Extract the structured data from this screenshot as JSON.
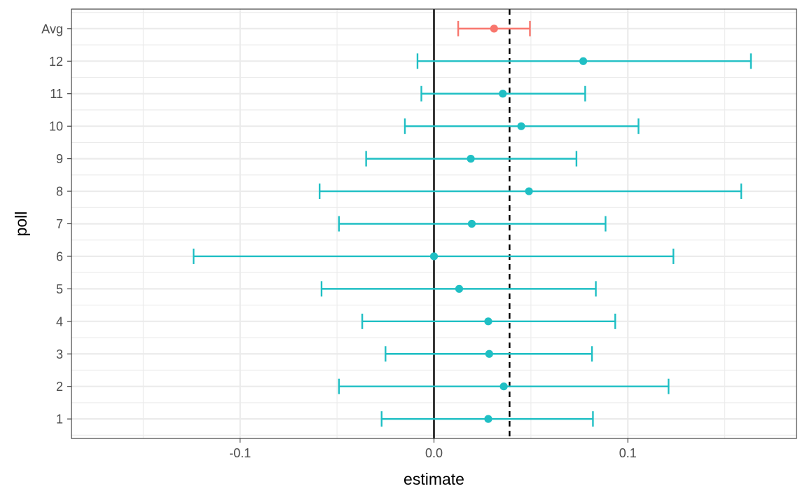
{
  "chart_data": {
    "type": "errorbar",
    "xlabel": "estimate",
    "ylabel": "poll",
    "xlim": [
      -0.187,
      0.187
    ],
    "x_ticks": [
      -0.1,
      0.0,
      0.1
    ],
    "x_tick_labels": [
      "-0.1",
      "0.0",
      "0.1"
    ],
    "x_minor_ticks": [
      -0.15,
      -0.05,
      0.05,
      0.15
    ],
    "categories": [
      "1",
      "2",
      "3",
      "4",
      "5",
      "6",
      "7",
      "8",
      "9",
      "10",
      "11",
      "12",
      "Avg"
    ],
    "points": [
      {
        "poll": "1",
        "estimate": 0.028,
        "low": -0.027,
        "high": 0.082,
        "group": "poll"
      },
      {
        "poll": "2",
        "estimate": 0.036,
        "low": -0.049,
        "high": 0.121,
        "group": "poll"
      },
      {
        "poll": "3",
        "estimate": 0.0285,
        "low": -0.025,
        "high": 0.0815,
        "group": "poll"
      },
      {
        "poll": "4",
        "estimate": 0.028,
        "low": -0.037,
        "high": 0.0935,
        "group": "poll"
      },
      {
        "poll": "5",
        "estimate": 0.013,
        "low": -0.058,
        "high": 0.0835,
        "group": "poll"
      },
      {
        "poll": "6",
        "estimate": 0.0,
        "low": -0.124,
        "high": 0.1235,
        "group": "poll"
      },
      {
        "poll": "7",
        "estimate": 0.0195,
        "low": -0.049,
        "high": 0.0885,
        "group": "poll"
      },
      {
        "poll": "8",
        "estimate": 0.049,
        "low": -0.059,
        "high": 0.1585,
        "group": "poll"
      },
      {
        "poll": "9",
        "estimate": 0.019,
        "low": -0.035,
        "high": 0.0735,
        "group": "poll"
      },
      {
        "poll": "10",
        "estimate": 0.045,
        "low": -0.015,
        "high": 0.1055,
        "group": "poll"
      },
      {
        "poll": "11",
        "estimate": 0.0355,
        "low": -0.0065,
        "high": 0.078,
        "group": "poll"
      },
      {
        "poll": "12",
        "estimate": 0.077,
        "low": -0.0085,
        "high": 0.1635,
        "group": "poll"
      },
      {
        "poll": "Avg",
        "estimate": 0.031,
        "low": 0.0125,
        "high": 0.0495,
        "group": "avg"
      }
    ],
    "reference_lines": [
      {
        "x": 0.0,
        "style": "solid"
      },
      {
        "x": 0.039,
        "style": "dashed"
      }
    ],
    "colors": {
      "poll": "#1fbfc4",
      "avg": "#f8766d",
      "reference": "#000000",
      "grid": "#ebebeb",
      "border": "#333333"
    },
    "grid": true,
    "legend": "none"
  }
}
